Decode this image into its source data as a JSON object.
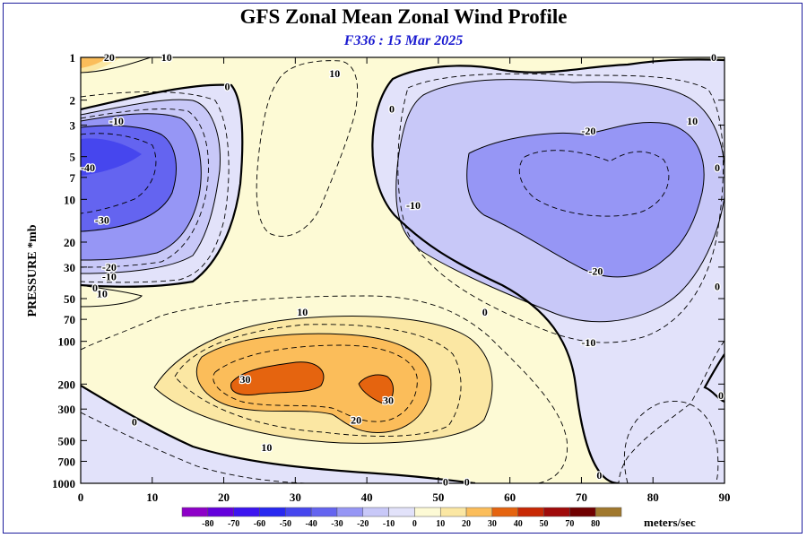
{
  "title": "GFS Zonal Mean Zonal Wind Profile",
  "subtitle": "F336 : 15 Mar 2025",
  "chart_data": {
    "type": "contour",
    "ylabel": "PRESSURE *mb",
    "xlabel": "",
    "y_scale": "log",
    "y_reversed": true,
    "x_range": [
      0,
      90
    ],
    "y_range": [
      1,
      1000
    ],
    "x_ticks": [
      "0",
      "10",
      "20",
      "30",
      "40",
      "50",
      "60",
      "70",
      "80",
      "90"
    ],
    "y_ticks": [
      "1",
      "2",
      "3",
      "5",
      "7",
      "10",
      "20",
      "30",
      "50",
      "70",
      "100",
      "200",
      "300",
      "500",
      "700",
      "1000"
    ],
    "contour_interval": 5,
    "labeled_contours": [
      {
        "x": 4,
        "p": 1,
        "value": "20"
      },
      {
        "x": 12,
        "p": 1,
        "value": "10"
      },
      {
        "x": 20.5,
        "p": 1.6,
        "value": "0"
      },
      {
        "x": 5,
        "p": 2.8,
        "value": "-10"
      },
      {
        "x": 1,
        "p": 6,
        "value": "-40"
      },
      {
        "x": 3,
        "p": 14,
        "value": "-30"
      },
      {
        "x": 4,
        "p": 30,
        "value": "-20"
      },
      {
        "x": 4,
        "p": 35,
        "value": "-10"
      },
      {
        "x": 2,
        "p": 42,
        "value": "0"
      },
      {
        "x": 3,
        "p": 46,
        "value": "10"
      },
      {
        "x": 35.5,
        "p": 1.3,
        "value": "10"
      },
      {
        "x": 43.5,
        "p": 2.3,
        "value": "0"
      },
      {
        "x": 46.5,
        "p": 11,
        "value": "-10"
      },
      {
        "x": 71,
        "p": 3.3,
        "value": "-20"
      },
      {
        "x": 72,
        "p": 32,
        "value": "-20"
      },
      {
        "x": 71,
        "p": 102,
        "value": "-10"
      },
      {
        "x": 56.5,
        "p": 62,
        "value": "0"
      },
      {
        "x": 85.5,
        "p": 2.8,
        "value": "10"
      },
      {
        "x": 88.5,
        "p": 1,
        "value": "0"
      },
      {
        "x": 89,
        "p": 6,
        "value": "0"
      },
      {
        "x": 89,
        "p": 41,
        "value": "0"
      },
      {
        "x": 89.5,
        "p": 240,
        "value": "0"
      },
      {
        "x": 31,
        "p": 62,
        "value": "10"
      },
      {
        "x": 23,
        "p": 185,
        "value": "30"
      },
      {
        "x": 43,
        "p": 260,
        "value": "30"
      },
      {
        "x": 38.5,
        "p": 360,
        "value": "20"
      },
      {
        "x": 26,
        "p": 560,
        "value": "10"
      },
      {
        "x": 7.5,
        "p": 370,
        "value": "0"
      },
      {
        "x": 51,
        "p": 980,
        "value": "0"
      },
      {
        "x": 54,
        "p": 980,
        "value": "0"
      },
      {
        "x": 72.5,
        "p": 880,
        "value": "0"
      }
    ]
  },
  "colorbar": {
    "labels": [
      "-80",
      "-70",
      "-60",
      "-50",
      "-40",
      "-30",
      "-20",
      "-10",
      "0",
      "10",
      "20",
      "30",
      "40",
      "50",
      "70",
      "80"
    ],
    "colors": [
      "#8e00c8",
      "#6400dc",
      "#3c14f0",
      "#2828f0",
      "#4646ee",
      "#6464f0",
      "#9696f5",
      "#c8c8f8",
      "#e2e2fa",
      "#fdfad5",
      "#fbe7a3",
      "#fbbd5a",
      "#e5640f",
      "#c82804",
      "#a00a0a",
      "#700000",
      "#a0782d"
    ],
    "units": "meters/sec"
  }
}
